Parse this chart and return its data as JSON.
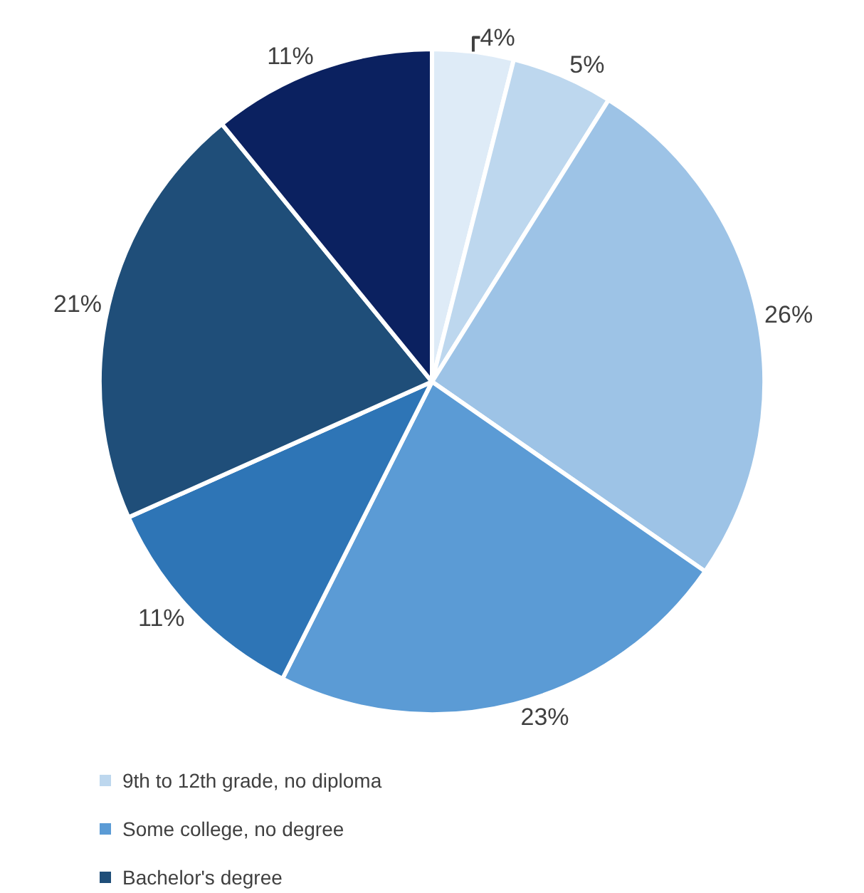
{
  "chart_data": {
    "type": "pie",
    "categories": [
      null,
      "9th to 12th grade, no diploma",
      null,
      "Some college, no degree",
      null,
      "Bachelor's degree",
      null
    ],
    "values": [
      4,
      5,
      26,
      23,
      11,
      21,
      11
    ],
    "colors": [
      "#deebf7",
      "#bdd7ee",
      "#9dc3e6",
      "#5b9bd5",
      "#2e75b6",
      "#1f4e79",
      "#0b2160"
    ],
    "value_labels": [
      "4%",
      "5%",
      "26%",
      "23%",
      "11%",
      "21%",
      "11%"
    ],
    "legend": "bottom"
  }
}
